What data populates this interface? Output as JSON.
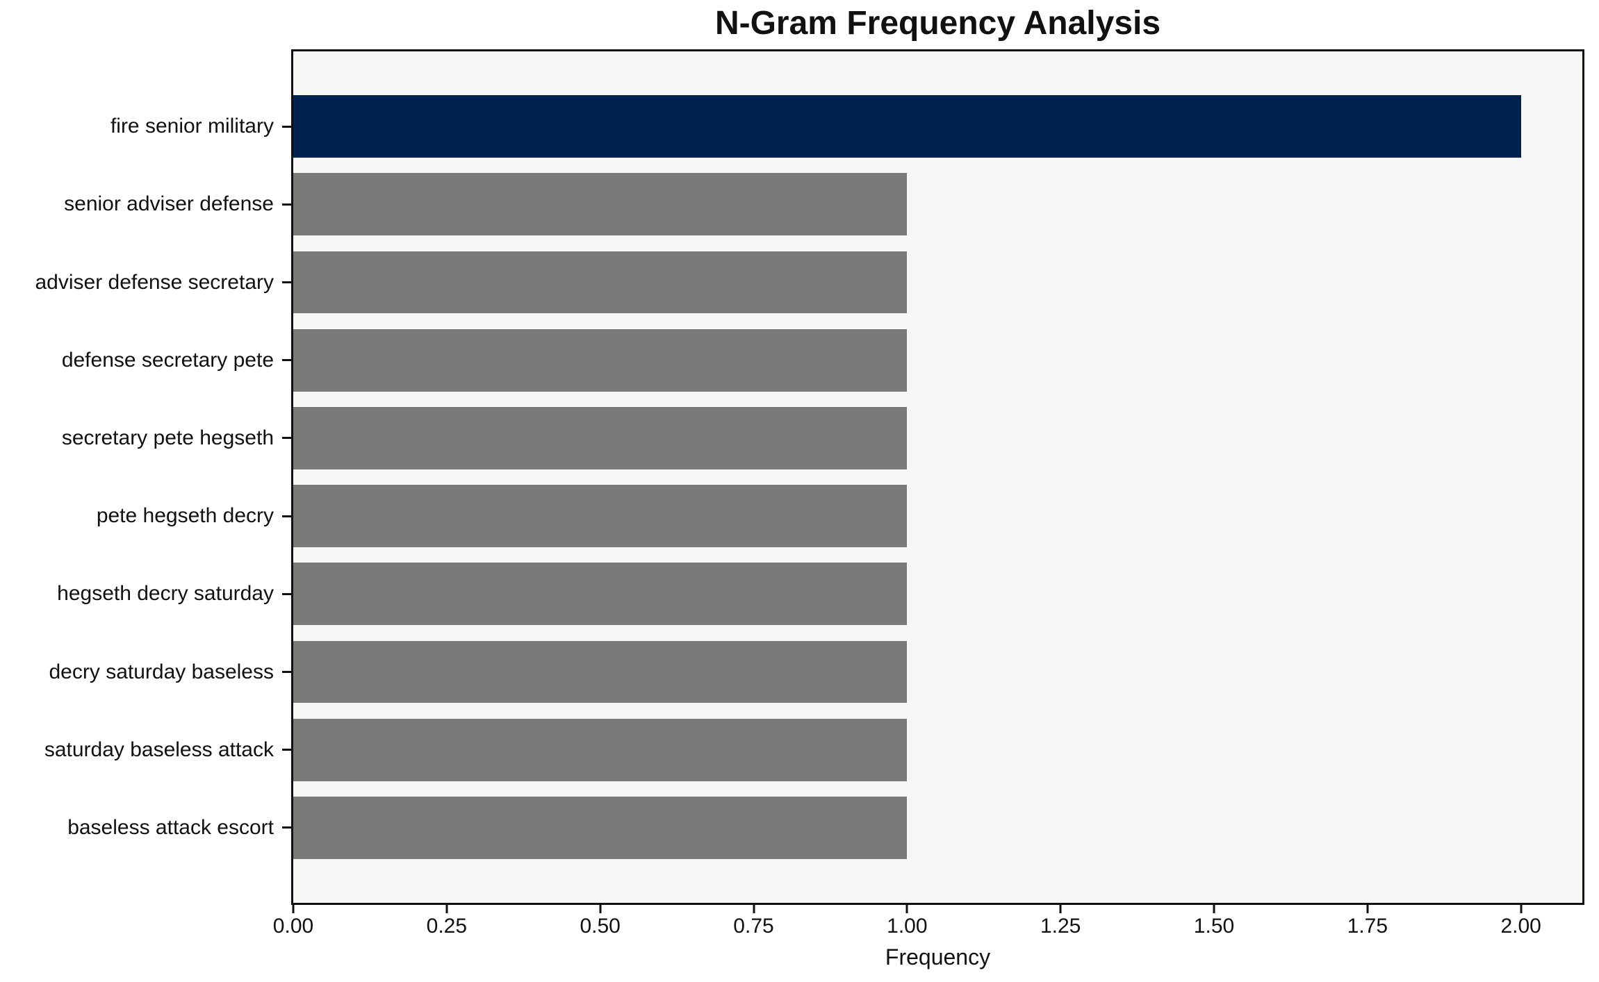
{
  "chart_data": {
    "type": "bar",
    "orientation": "horizontal",
    "title": "N-Gram Frequency Analysis",
    "xlabel": "Frequency",
    "ylabel": "",
    "categories": [
      "fire senior military",
      "senior adviser defense",
      "adviser defense secretary",
      "defense secretary pete",
      "secretary pete hegseth",
      "pete hegseth decry",
      "hegseth decry saturday",
      "decry saturday baseless",
      "saturday baseless attack",
      "baseless attack escort"
    ],
    "values": [
      2,
      1,
      1,
      1,
      1,
      1,
      1,
      1,
      1,
      1
    ],
    "xlim": [
      0,
      2.1
    ],
    "xticks": [
      0,
      0.25,
      0.5,
      0.75,
      1.0,
      1.25,
      1.5,
      1.75,
      2.0
    ],
    "xtick_labels": [
      "0.00",
      "0.25",
      "0.50",
      "0.75",
      "1.00",
      "1.25",
      "1.50",
      "1.75",
      "2.00"
    ],
    "grid": false,
    "legend": null,
    "colors": {
      "highlight_index": 0,
      "highlight_bar": "#01224e",
      "default_bar": "#7a7b78",
      "plot_background": "#f7f7f6",
      "figure_background": "#ffffff",
      "text": "#111111"
    }
  }
}
